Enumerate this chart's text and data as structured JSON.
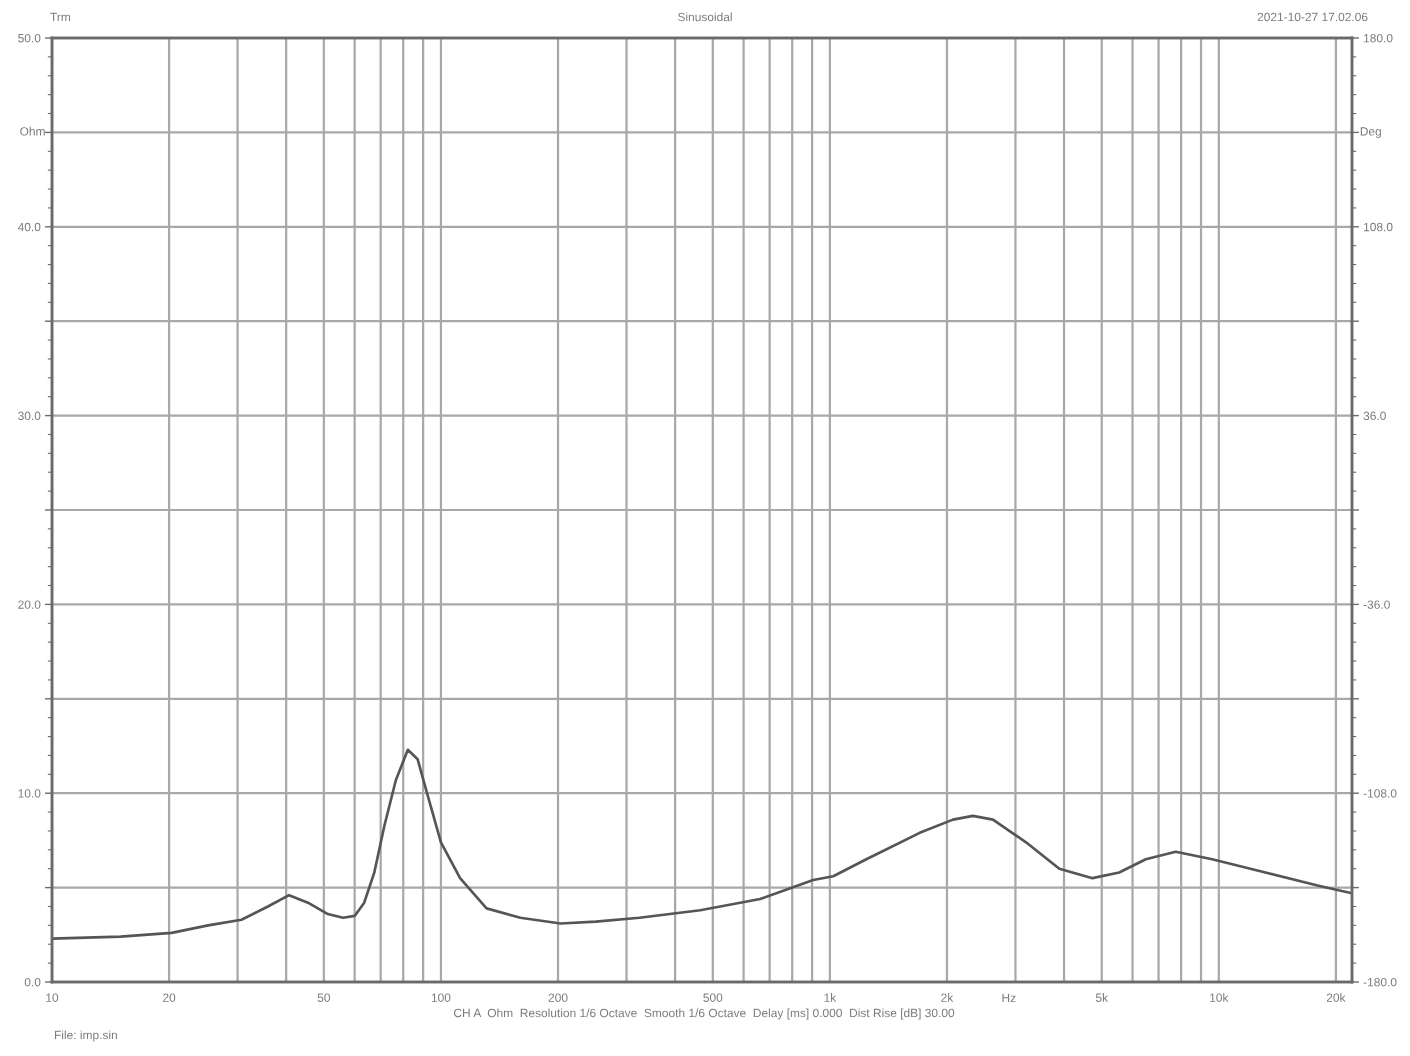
{
  "chart_data": {
    "type": "line",
    "title": "Sinusoidal",
    "xlabel": "Hz",
    "ylabel": "Ohm",
    "y2label": "Deg",
    "annotations": [
      "Trm",
      "2021-10-27 17.02.06",
      "CH A  Ohm  Resolution 1/6 Octave  Smooth 1/6 Octave  Delay [ms] 0.000  Dist Rise [dB] 30.00",
      "File: imp.sin"
    ],
    "x": [
      10,
      15,
      20.3,
      25.2,
      30.7,
      35.9,
      40.7,
      45.5,
      51.2,
      56,
      60,
      63.5,
      67.4,
      71.6,
      76.6,
      82.2,
      87.1,
      92.1,
      100,
      112,
      131,
      160,
      203,
      250,
      324,
      464,
      662,
      906,
      1020,
      1241,
      1702,
      2072,
      2332,
      2626,
      3194,
      3890,
      4735,
      5544,
      6490,
      7746,
      9615,
      13180,
      18050,
      22000
    ],
    "series": [
      {
        "color": "#555555",
        "values": [
          2.3,
          2.4,
          2.6,
          3.0,
          3.3,
          4.0,
          4.6,
          4.2,
          3.6,
          3.4,
          3.5,
          4.2,
          5.8,
          8.3,
          10.7,
          12.3,
          11.8,
          10.0,
          7.4,
          5.5,
          3.9,
          3.4,
          3.1,
          3.2,
          3.4,
          3.8,
          4.4,
          5.4,
          5.6,
          6.5,
          7.9,
          8.6,
          8.8,
          8.6,
          7.4,
          6.0,
          5.5,
          5.8,
          6.5,
          6.9,
          6.5,
          5.8,
          5.1,
          4.7
        ]
      }
    ],
    "log": "x",
    "grid": true,
    "xlim": [
      10,
      22000
    ],
    "xticks": [
      10,
      20,
      {
        "value": 30,
        "label": null
      },
      {
        "value": 40,
        "label": null
      },
      50,
      {
        "value": 60,
        "label": null
      },
      {
        "value": 70,
        "label": null
      },
      {
        "value": 80,
        "label": null
      },
      {
        "value": 90,
        "label": null
      },
      100,
      200,
      {
        "value": 300,
        "label": null
      },
      {
        "value": 400,
        "label": null
      },
      500,
      {
        "value": 600,
        "label": null
      },
      {
        "value": 700,
        "label": null
      },
      {
        "value": 800,
        "label": null
      },
      {
        "value": 900,
        "label": null
      },
      {
        "value": 1000,
        "label": "1k"
      },
      {
        "value": 2000,
        "label": "2k"
      },
      {
        "value": 3000,
        "label": null
      },
      {
        "value": 4000,
        "label": null
      },
      {
        "value": 5000,
        "label": "5k"
      },
      {
        "value": 6000,
        "label": null
      },
      {
        "value": 7000,
        "label": null
      },
      {
        "value": 8000,
        "label": null
      },
      {
        "value": 9000,
        "label": null
      },
      {
        "value": 10000,
        "label": "10k"
      },
      {
        "value": 20000,
        "label": "20k"
      }
    ],
    "ylim": [
      0,
      50
    ],
    "yticks": [
      {
        "value": 0,
        "label": "0.0"
      },
      {
        "value": 5,
        "label": null
      },
      {
        "value": 10,
        "label": "10.0"
      },
      {
        "value": 15,
        "label": null
      },
      {
        "value": 20,
        "label": "20.0"
      },
      {
        "value": 25,
        "label": null
      },
      {
        "value": 30,
        "label": "30.0"
      },
      {
        "value": 35,
        "label": null
      },
      {
        "value": 40,
        "label": "40.0"
      },
      {
        "value": 45,
        "label": null
      },
      {
        "value": 50,
        "label": "50.0"
      }
    ],
    "y2lim": [
      -180,
      180
    ],
    "y2ticks": [
      {
        "value": -180,
        "label": "-180.0"
      },
      {
        "value": -144,
        "label": null
      },
      {
        "value": -108,
        "label": "-108.0"
      },
      {
        "value": -72,
        "label": null
      },
      {
        "value": -36,
        "label": "-36.0"
      },
      {
        "value": 0,
        "label": null
      },
      {
        "value": 36,
        "label": "36.0"
      },
      {
        "value": 72,
        "label": null
      },
      {
        "value": 108,
        "label": "108.0"
      },
      {
        "value": 144,
        "label": null
      },
      {
        "value": 180,
        "label": "180.0"
      }
    ]
  }
}
